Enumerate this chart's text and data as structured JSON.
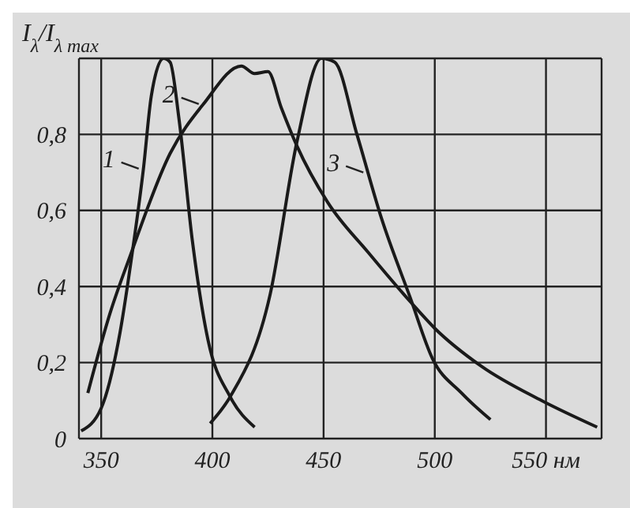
{
  "chart_data": {
    "type": "line",
    "ylabel": "I$_{λ}$/I$_{λ max}$",
    "xlim": [
      340,
      575
    ],
    "xticks": [
      350,
      400,
      450,
      500,
      {
        "value": 550,
        "label": "550 нм"
      }
    ],
    "ylim": [
      0,
      1
    ],
    "yticks": [
      0,
      {
        "value": 0.2,
        "label": "0,2"
      },
      {
        "value": 0.4,
        "label": "0,4"
      },
      {
        "value": 0.6,
        "label": "0,6"
      },
      {
        "value": 0.8,
        "label": "0,8"
      }
    ],
    "grid": true,
    "marker": "none",
    "line_style": "solid",
    "series": [
      {
        "color": "#1a1a1a",
        "x": [
          341,
          350,
          358.5,
          364,
          369,
          372.5,
          378,
          381,
          385,
          391,
          398,
          408,
          419
        ],
        "values": [
          0.02,
          0.08,
          0.28,
          0.49,
          0.71,
          0.9,
          1.0,
          0.99,
          0.84,
          0.52,
          0.26,
          0.11,
          0.03
        ]
      },
      {
        "color": "#1a1a1a",
        "x": [
          344,
          354,
          363,
          381,
          396,
          413,
          419,
          425,
          431,
          438,
          452,
          470,
          489,
          500,
          521,
          548,
          573
        ],
        "values": [
          0.12,
          0.33,
          0.48,
          0.75,
          0.88,
          0.98,
          0.96,
          0.965,
          0.87,
          0.77,
          0.62,
          0.49,
          0.36,
          0.29,
          0.19,
          0.1,
          0.03
        ]
      },
      {
        "color": "#1a1a1a",
        "x": [
          399,
          408,
          426,
          438,
          449,
          455,
          465,
          476,
          489,
          499,
          512,
          525
        ],
        "values": [
          0.04,
          0.11,
          0.38,
          0.78,
          1.0,
          0.99,
          0.8,
          0.58,
          0.37,
          0.21,
          0.12,
          0.05
        ]
      }
    ],
    "annotations": [
      {
        "text": "1",
        "x": 369,
        "y": 0.71
      },
      {
        "text": "2",
        "x": 396,
        "y": 0.88
      },
      {
        "text": "3",
        "x": 470,
        "y": 0.7
      }
    ]
  }
}
